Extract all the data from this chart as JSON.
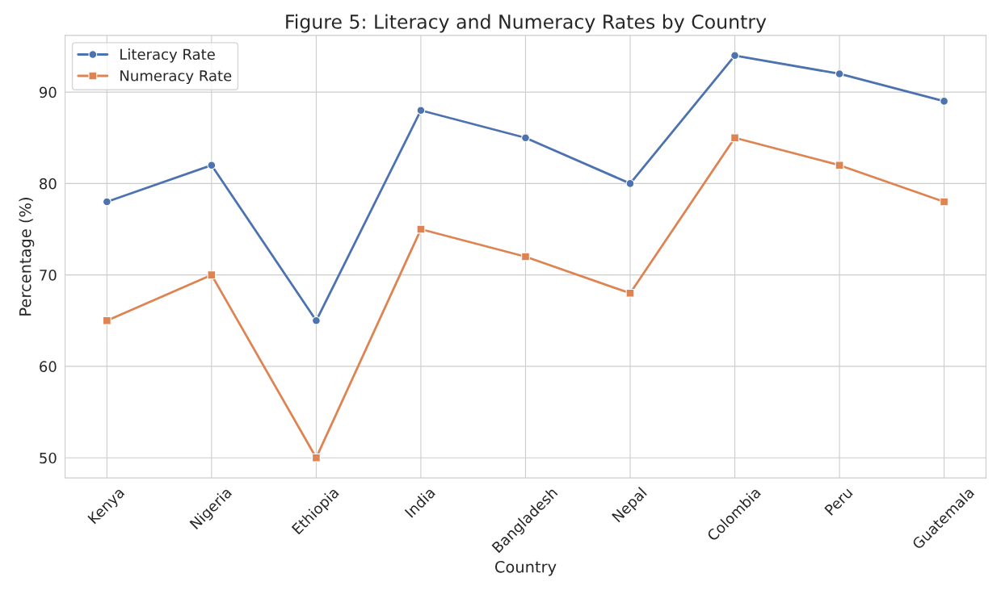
{
  "chart_data": {
    "type": "line",
    "title": "Figure 5: Literacy and Numeracy Rates by Country",
    "xlabel": "Country",
    "ylabel": "Percentage (%)",
    "categories": [
      "Kenya",
      "Nigeria",
      "Ethiopia",
      "India",
      "Bangladesh",
      "Nepal",
      "Colombia",
      "Peru",
      "Guatemala"
    ],
    "series": [
      {
        "name": "Literacy Rate",
        "color": "#4c72b0",
        "marker": "circle",
        "values": [
          78,
          82,
          65,
          88,
          85,
          80,
          94,
          92,
          89
        ]
      },
      {
        "name": "Numeracy Rate",
        "color": "#dd8452",
        "marker": "square",
        "values": [
          65,
          70,
          50,
          75,
          72,
          68,
          85,
          82,
          78
        ]
      }
    ],
    "ylim": [
      47.8,
      96.2
    ],
    "yticks": [
      50,
      60,
      70,
      80,
      90
    ],
    "grid": true,
    "legend": "top left",
    "line_style": "solid"
  }
}
